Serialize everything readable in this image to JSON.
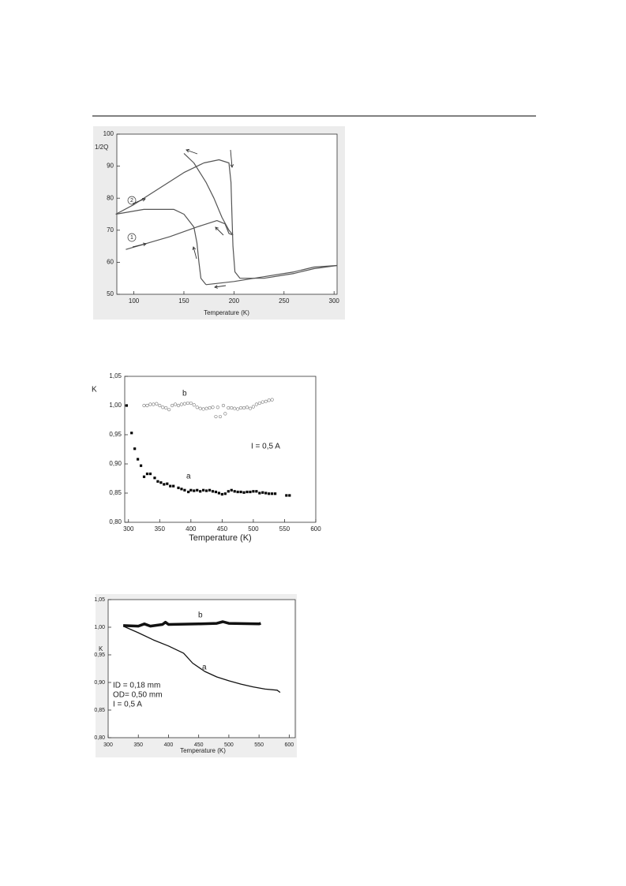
{
  "chart_data": [
    {
      "type": "line",
      "x_label": "Temperature (K)",
      "y_label": "1/2Q",
      "xlim": [
        83,
        303
      ],
      "xticks": [
        100,
        150,
        200,
        250,
        300
      ],
      "ylim": [
        50,
        100
      ],
      "yticks": [
        50,
        60,
        70,
        80,
        90,
        100
      ],
      "annotations": [
        "1",
        "2"
      ],
      "series": [
        {
          "color": "#555555",
          "x": [
            92,
            136,
            163,
            183,
            191,
            195,
            199
          ],
          "values": [
            64,
            68,
            71,
            73,
            72,
            69,
            68.5
          ]
        },
        {
          "color": "#555555",
          "x": [
            82,
            110,
            140,
            150,
            160,
            163,
            165,
            167,
            172
          ],
          "values": [
            75,
            76.5,
            76.5,
            75,
            71,
            66,
            60,
            55,
            53
          ]
        },
        {
          "color": "#555555",
          "x": [
            172,
            200,
            230,
            260,
            280,
            303
          ],
          "values": [
            53,
            54,
            55.5,
            57,
            58.5,
            59
          ]
        },
        {
          "color": "#555555",
          "x": [
            82,
            100,
            125,
            150,
            170,
            185,
            195,
            197,
            198,
            199,
            201,
            206,
            230,
            260,
            280,
            303
          ],
          "values": [
            75,
            78,
            83,
            88,
            91,
            92,
            91,
            85,
            75,
            65,
            57,
            55,
            55,
            56.5,
            58,
            59
          ]
        },
        {
          "color": "#555555",
          "x": [
            150,
            160,
            172,
            180,
            188,
            195,
            199
          ],
          "values": [
            94,
            91,
            85,
            80,
            74,
            70,
            68.5
          ]
        }
      ]
    },
    {
      "type": "scatter",
      "x_label": "Temperature (K)",
      "y_label": "K",
      "xlim": [
        294,
        600
      ],
      "xticks": [
        300,
        350,
        400,
        450,
        500,
        550,
        600
      ],
      "ylim": [
        0.8,
        1.05
      ],
      "yticks": [
        {
          "value": 0.8,
          "label": "0,80"
        },
        {
          "value": 0.85,
          "label": "0,85"
        },
        {
          "value": 0.9,
          "label": "0,90"
        },
        {
          "value": 0.95,
          "label": "0,95"
        },
        {
          "value": 1.0,
          "label": "1,00"
        },
        {
          "value": 1.05,
          "label": "1,05"
        }
      ],
      "annotations": [
        "a",
        "b",
        "I = 0,5 A"
      ],
      "series": [
        {
          "marker": "square",
          "color": "#000000",
          "x": [
            297,
            305,
            310,
            315,
            320,
            325,
            330,
            335,
            342,
            347,
            352,
            357,
            362,
            367,
            372,
            380,
            385,
            390,
            396,
            400,
            405,
            410,
            415,
            420,
            425,
            430,
            435,
            440,
            445,
            450,
            455,
            460,
            465,
            470,
            475,
            480,
            485,
            490,
            495,
            500,
            505,
            510,
            515,
            520,
            525,
            530,
            535,
            553,
            558
          ],
          "values": [
            1.0,
            0.953,
            0.926,
            0.908,
            0.897,
            0.878,
            0.883,
            0.883,
            0.876,
            0.87,
            0.868,
            0.865,
            0.866,
            0.862,
            0.862,
            0.859,
            0.857,
            0.855,
            0.852,
            0.855,
            0.854,
            0.855,
            0.853,
            0.855,
            0.854,
            0.855,
            0.853,
            0.852,
            0.85,
            0.848,
            0.849,
            0.853,
            0.855,
            0.853,
            0.852,
            0.852,
            0.851,
            0.852,
            0.852,
            0.853,
            0.853,
            0.85,
            0.851,
            0.85,
            0.849,
            0.849,
            0.849,
            0.846,
            0.846
          ]
        },
        {
          "marker": "circle",
          "color": "#777777",
          "x": [
            325,
            330,
            335,
            340,
            345,
            350,
            355,
            360,
            365,
            370,
            375,
            380,
            385,
            390,
            395,
            400,
            405,
            410,
            415,
            420,
            425,
            430,
            435,
            440,
            443,
            447,
            452,
            455,
            460,
            465,
            470,
            475,
            480,
            485,
            490,
            495,
            500,
            505,
            510,
            515,
            520,
            525,
            530
          ],
          "values": [
            1.0,
            1.0,
            1.002,
            1.002,
            1.003,
            1.0,
            0.997,
            0.996,
            0.993,
            1.0,
            1.002,
            1.0,
            1.002,
            1.003,
            1.004,
            1.004,
            1.001,
            0.997,
            0.995,
            0.994,
            0.995,
            0.996,
            0.997,
            0.981,
            0.997,
            0.981,
            1.0,
            0.986,
            0.996,
            0.996,
            0.995,
            0.994,
            0.996,
            0.996,
            0.997,
            0.995,
            0.998,
            1.002,
            1.004,
            1.006,
            1.007,
            1.009,
            1.01
          ]
        }
      ]
    },
    {
      "type": "line",
      "x_label": "Temperature (K)",
      "y_label": "K",
      "xlim": [
        300,
        610
      ],
      "xticks": [
        300,
        350,
        400,
        450,
        500,
        550,
        600
      ],
      "ylim": [
        0.8,
        1.05
      ],
      "yticks": [
        {
          "value": 0.8,
          "label": "0,80"
        },
        {
          "value": 0.85,
          "label": "0,85"
        },
        {
          "value": 0.9,
          "label": "0,90"
        },
        {
          "value": 0.95,
          "label": "0,95"
        },
        {
          "value": 1.0,
          "label": "1,00"
        },
        {
          "value": 1.05,
          "label": "1,05"
        }
      ],
      "annotations": [
        "b",
        "a",
        "ID = 0,18  mm",
        "OD= 0,50  mm",
        "I =    0,5 A"
      ],
      "series": [
        {
          "color": "#111111",
          "width": 1.3,
          "x": [
            325,
            350,
            375,
            400,
            425,
            440,
            460,
            480,
            500,
            520,
            540,
            560,
            580,
            585
          ],
          "values": [
            1.002,
            0.99,
            0.977,
            0.966,
            0.953,
            0.935,
            0.92,
            0.91,
            0.903,
            0.897,
            0.892,
            0.888,
            0.886,
            0.882
          ]
        },
        {
          "color": "#111111",
          "width": 3.5,
          "x": [
            325,
            350,
            360,
            370,
            390,
            395,
            400,
            450,
            480,
            490,
            500,
            550,
            553
          ],
          "values": [
            1.003,
            1.002,
            1.006,
            1.002,
            1.005,
            1.009,
            1.005,
            1.006,
            1.007,
            1.01,
            1.007,
            1.006,
            1.007
          ]
        }
      ]
    }
  ]
}
